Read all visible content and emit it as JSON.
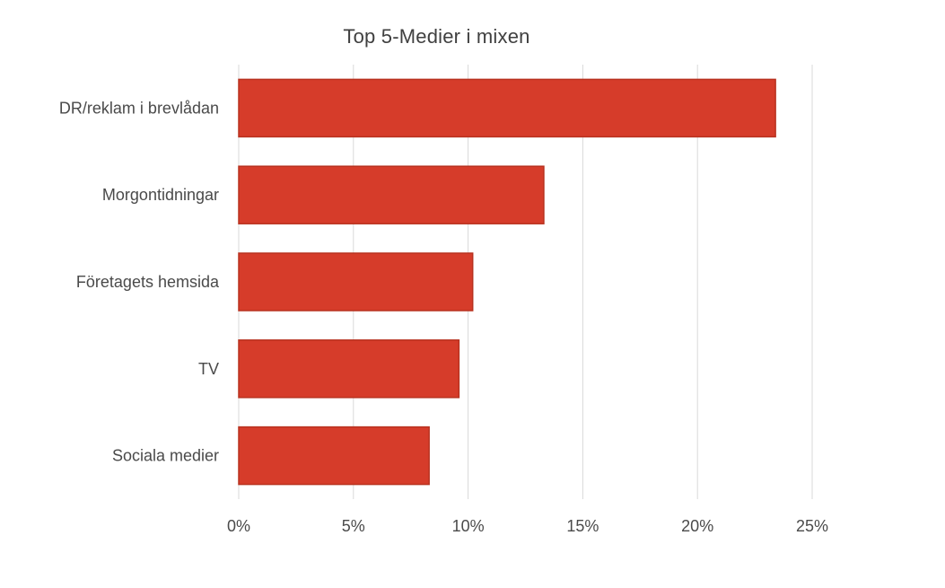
{
  "chart_data": {
    "type": "bar",
    "orientation": "horizontal",
    "title": "Top 5-Medier i mixen",
    "categories": [
      "DR/reklam i brevlådan",
      "Morgontidningar",
      "Företagets hemsida",
      "TV",
      "Sociala medier"
    ],
    "values": [
      23.4,
      13.3,
      10.2,
      9.6,
      8.3
    ],
    "value_unit": "%",
    "xlim": [
      0,
      25
    ],
    "xticks": [
      0,
      5,
      10,
      15,
      20,
      25
    ],
    "xtick_labels": [
      "0%",
      "5%",
      "10%",
      "15%",
      "20%",
      "25%"
    ],
    "xlabel": "",
    "ylabel": "",
    "grid": "vertical",
    "legend": "none",
    "bar_color": "#d63c2a",
    "bar_border_color": "#b8321f",
    "grid_color": "#d9d9d9",
    "text_color": "#4a4a4a"
  }
}
